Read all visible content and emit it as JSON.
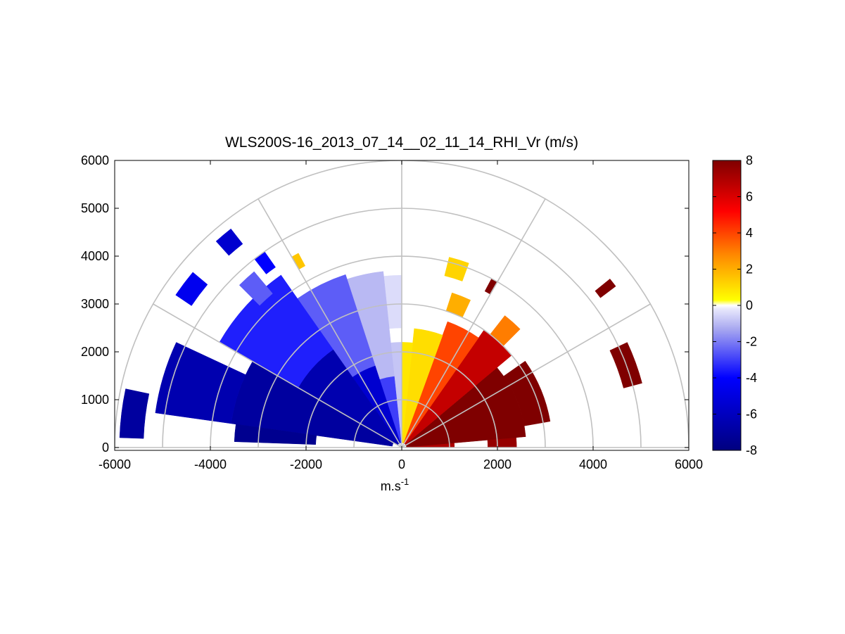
{
  "chart_data": {
    "type": "heatmap",
    "projection": "polar-rhi",
    "title": "WLS200S-16_2013_07_14__02_11_14_RHI_Vr (m/s)",
    "xlabel": "m.s",
    "xlabel_superscript": "-1",
    "ylabel": "",
    "xlim": [
      -6000,
      6000
    ],
    "ylim": [
      0,
      6000
    ],
    "x_ticks": [
      "-6000",
      "-4000",
      "-2000",
      "0",
      "2000",
      "4000",
      "6000"
    ],
    "y_ticks": [
      "0",
      "1000",
      "2000",
      "3000",
      "4000",
      "5000",
      "6000"
    ],
    "x_tick_values": [
      -6000,
      -4000,
      -2000,
      0,
      2000,
      4000,
      6000
    ],
    "y_tick_values": [
      0,
      1000,
      2000,
      3000,
      4000,
      5000,
      6000
    ],
    "polar_grid": {
      "ring_radii_m": [
        1000,
        2000,
        3000,
        4000,
        5000,
        6000
      ],
      "spoke_angles_deg": [
        0,
        30,
        60,
        90,
        120,
        150,
        180
      ]
    },
    "colorbar": {
      "min": -8,
      "max": 8,
      "ticks": [
        "-8",
        "-6",
        "-4",
        "-2",
        "0",
        "2",
        "4",
        "6",
        "8"
      ],
      "tick_values": [
        -8,
        -6,
        -4,
        -2,
        0,
        2,
        4,
        6,
        8
      ],
      "colormap_stops": [
        {
          "v": -8,
          "c": "#00007f"
        },
        {
          "v": -4,
          "c": "#0000ff"
        },
        {
          "v": -1.3,
          "c": "#a8a8f0"
        },
        {
          "v": -0.2,
          "c": "#e8e8fc"
        },
        {
          "v": 0,
          "c": "#ffffff"
        },
        {
          "v": 0.3,
          "c": "#ffff00"
        },
        {
          "v": 2.8,
          "c": "#ff8800"
        },
        {
          "v": 5.2,
          "c": "#ff0000"
        },
        {
          "v": 8,
          "c": "#7f0000"
        }
      ]
    },
    "velocity_sectors_m_s": [
      {
        "az_deg": [
          0,
          5
        ],
        "r_m": [
          80,
          1100
        ],
        "vr": 7
      },
      {
        "az_deg": [
          0,
          5
        ],
        "r_m": [
          1800,
          2400
        ],
        "vr": 7.5
      },
      {
        "az_deg": [
          5,
          40
        ],
        "r_m": [
          100,
          2600
        ],
        "vr": 8
      },
      {
        "az_deg": [
          10,
          35
        ],
        "r_m": [
          2600,
          3150
        ],
        "vr": 8
      },
      {
        "az_deg": [
          15,
          25
        ],
        "r_m": [
          4800,
          5200
        ],
        "vr": 8
      },
      {
        "az_deg": [
          40,
          55
        ],
        "r_m": [
          100,
          3000
        ],
        "vr": 6.5
      },
      {
        "az_deg": [
          45,
          52
        ],
        "r_m": [
          3000,
          3500
        ],
        "vr": 3
      },
      {
        "az_deg": [
          55,
          70
        ],
        "r_m": [
          100,
          2800
        ],
        "vr": 4
      },
      {
        "az_deg": [
          65,
          72
        ],
        "r_m": [
          3000,
          3400
        ],
        "vr": 2
      },
      {
        "az_deg": [
          70,
          84
        ],
        "r_m": [
          100,
          2500
        ],
        "vr": 1
      },
      {
        "az_deg": [
          70,
          76
        ],
        "r_m": [
          3700,
          4100
        ],
        "vr": 1.2
      },
      {
        "az_deg": [
          60,
          62
        ],
        "r_m": [
          3700,
          4000
        ],
        "vr": 8
      },
      {
        "az_deg": [
          37,
          39
        ],
        "r_m": [
          5200,
          5600
        ],
        "vr": 8
      },
      {
        "az_deg": [
          84,
          90
        ],
        "r_m": [
          100,
          2200
        ],
        "vr": 0.8
      },
      {
        "az_deg": [
          90,
          96
        ],
        "r_m": [
          100,
          2200
        ],
        "vr": -0.8
      },
      {
        "az_deg": [
          90,
          96
        ],
        "r_m": [
          2500,
          3600
        ],
        "vr": -0.4
      },
      {
        "az_deg": [
          96,
          108
        ],
        "r_m": [
          100,
          1500
        ],
        "vr": -3
      },
      {
        "az_deg": [
          96,
          108
        ],
        "r_m": [
          1500,
          3700
        ],
        "vr": -1
      },
      {
        "az_deg": [
          108,
          125
        ],
        "r_m": [
          100,
          1800
        ],
        "vr": -5.5
      },
      {
        "az_deg": [
          108,
          125
        ],
        "r_m": [
          1800,
          3800
        ],
        "vr": -2.5
      },
      {
        "az_deg": [
          125,
          150
        ],
        "r_m": [
          100,
          2500
        ],
        "vr": -6.5
      },
      {
        "az_deg": [
          125,
          150
        ],
        "r_m": [
          2500,
          4400
        ],
        "vr": -3.5
      },
      {
        "az_deg": [
          150,
          172
        ],
        "r_m": [
          200,
          3600
        ],
        "vr": -7
      },
      {
        "az_deg": [
          155,
          172
        ],
        "r_m": [
          3600,
          5200
        ],
        "vr": -6.5
      },
      {
        "az_deg": [
          172,
          178
        ],
        "r_m": [
          1800,
          3500
        ],
        "vr": -7.5
      },
      {
        "az_deg": [
          168,
          178
        ],
        "r_m": [
          5400,
          5900
        ],
        "vr": -7
      },
      {
        "az_deg": [
          140,
          146
        ],
        "r_m": [
          5300,
          5700
        ],
        "vr": -4.5
      },
      {
        "az_deg": [
          128,
          132
        ],
        "r_m": [
          5400,
          5800
        ],
        "vr": -5.5
      },
      {
        "az_deg": [
          125,
          128
        ],
        "r_m": [
          4600,
          5000
        ],
        "vr": -4
      },
      {
        "az_deg": [
          130,
          135
        ],
        "r_m": [
          4200,
          4800
        ],
        "vr": -2.5
      },
      {
        "az_deg": [
          118,
          120
        ],
        "r_m": [
          4300,
          4600
        ],
        "vr": 1.5
      }
    ]
  }
}
